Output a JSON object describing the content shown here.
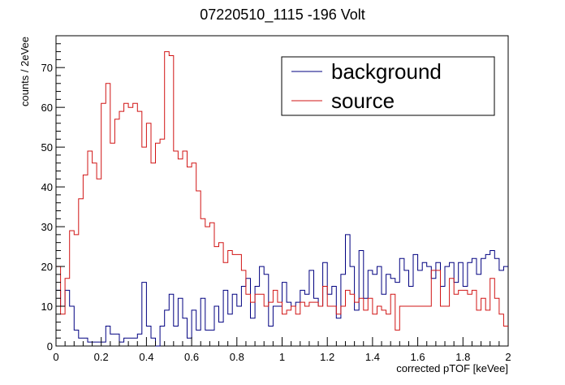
{
  "chart_data": {
    "type": "histogram",
    "title": "07220510_1115 -196 Volt",
    "xlabel": "corrected pTOF [keVee]",
    "ylabel": "counts / 2eVee",
    "xlim": [
      0,
      2
    ],
    "ylim": [
      0,
      78
    ],
    "bin_width": 0.02,
    "x_ticks": [
      "0",
      "0.2",
      "0.4",
      "0.6",
      "0.8",
      "1",
      "1.2",
      "1.4",
      "1.6",
      "1.8",
      "2"
    ],
    "y_ticks": [
      "0",
      "10",
      "20",
      "30",
      "40",
      "50",
      "60",
      "70"
    ],
    "legend_position": "top-right",
    "series": [
      {
        "name": "background",
        "color": "#000080",
        "values": [
          14,
          10,
          14,
          10,
          4,
          2,
          2,
          1,
          1,
          1,
          1,
          5,
          3,
          3,
          1,
          2,
          2,
          2,
          3,
          16,
          5,
          2,
          0,
          5,
          9,
          13,
          5,
          12,
          7,
          2,
          9,
          4,
          12,
          4,
          4,
          10,
          6,
          14,
          8,
          13,
          10,
          15,
          17,
          7,
          15,
          20,
          18,
          5,
          10,
          10,
          16,
          11,
          10,
          11,
          14,
          13,
          19,
          12,
          10,
          21,
          13,
          15,
          7,
          18,
          28,
          20,
          9,
          24,
          12,
          19,
          18,
          20,
          13,
          18,
          17,
          16,
          22,
          19,
          15,
          23,
          19,
          21,
          20,
          17,
          21,
          15,
          20,
          21,
          16,
          21,
          15,
          21,
          22,
          18,
          22,
          23,
          24,
          22,
          19,
          20
        ]
      },
      {
        "name": "source",
        "color": "#d11414",
        "values": [
          20,
          8,
          17,
          29,
          28,
          37,
          43,
          49,
          46,
          42,
          61,
          66,
          51,
          57,
          59,
          61,
          60,
          61,
          59,
          50,
          56,
          46,
          51,
          52,
          74,
          73,
          49,
          47,
          49,
          45,
          46,
          39,
          32,
          30,
          31,
          25,
          26,
          21,
          24,
          23,
          23,
          19,
          13,
          11,
          13,
          13,
          10,
          11,
          14,
          11,
          8,
          9,
          10,
          8,
          11,
          10,
          11,
          11,
          10,
          15,
          10,
          10,
          8,
          10,
          14,
          13,
          11,
          12,
          9,
          12,
          8,
          10,
          9,
          8,
          13,
          4,
          10,
          10,
          10,
          10,
          10,
          10,
          10,
          19,
          19,
          10,
          10,
          17,
          13,
          14,
          14,
          13,
          14,
          9,
          12,
          9,
          17,
          12,
          8,
          5
        ]
      }
    ]
  }
}
